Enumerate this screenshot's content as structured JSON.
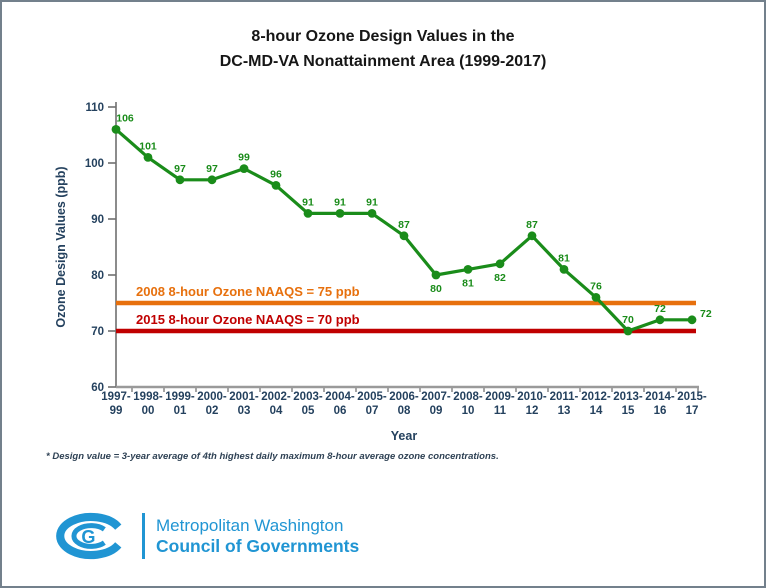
{
  "title": {
    "line1": "8-hour Ozone Design Values in the",
    "line2": "DC-MD-VA Nonattainment Area (1999-2017)"
  },
  "chart_data": {
    "type": "line",
    "title": "8-hour Ozone Design Values in the DC-MD-VA Nonattainment Area (1999-2017)",
    "categories": [
      "1997-99",
      "1998-00",
      "1999-01",
      "2000-02",
      "2001-03",
      "2002-04",
      "2003-05",
      "2004-06",
      "2005-07",
      "2006-08",
      "2007-09",
      "2008-10",
      "2009-11",
      "2010-12",
      "2011-13",
      "2012-14",
      "2013-15",
      "2014-16",
      "2015-17"
    ],
    "values": [
      106,
      101,
      97,
      97,
      99,
      96,
      91,
      91,
      91,
      87,
      80,
      81,
      82,
      87,
      81,
      76,
      70,
      72,
      72
    ],
    "xlabel": "Year",
    "ylabel": "Ozone Design Values (ppb)",
    "ylim": [
      60,
      110
    ],
    "yticks": [
      60,
      70,
      80,
      90,
      100,
      110
    ],
    "grid": false,
    "legend": "none",
    "marker": "circle",
    "series_color": "#1a8c1a",
    "text_color": "#24415e",
    "axis_color": "#9a9a9a",
    "label_below_indices": [
      10,
      11,
      12
    ],
    "reference_lines": [
      {
        "label": "2008 8-hour Ozone NAAQS = 75 ppb",
        "value": 75,
        "color": "#e7700d"
      },
      {
        "label": "2015 8-hour Ozone NAAQS = 70 ppb",
        "value": 70,
        "color": "#c00000"
      }
    ]
  },
  "footnote": {
    "text": "* Design value = 3-year average of 4th highest daily maximum  8-hour average ozone concentrations."
  },
  "logo": {
    "monogram": "G",
    "line1": "Metropolitan Washington",
    "line2": "Council of Governments",
    "color": "#2095d3"
  }
}
